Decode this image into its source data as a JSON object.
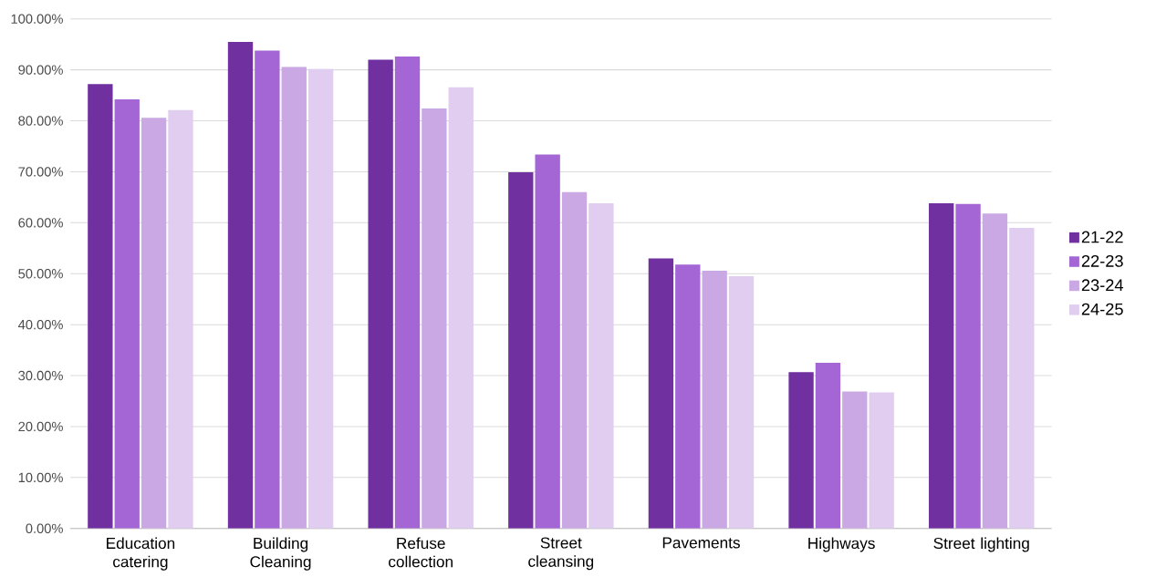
{
  "chart_data": {
    "type": "bar",
    "categories": [
      "Education catering",
      "Building Cleaning",
      "Refuse collection",
      "Street cleansing",
      "Pavements",
      "Highways",
      "Street lighting"
    ],
    "series": [
      {
        "name": "21-22",
        "color": "#7030a0",
        "values": [
          87.2,
          95.5,
          92.0,
          69.9,
          53.0,
          30.7,
          63.8
        ]
      },
      {
        "name": "22-23",
        "color": "#a366d4",
        "values": [
          84.2,
          93.8,
          92.6,
          73.4,
          51.8,
          32.5,
          63.7
        ]
      },
      {
        "name": "23-24",
        "color": "#c9a8e4",
        "values": [
          80.6,
          90.6,
          82.4,
          66.0,
          50.6,
          26.9,
          61.8
        ]
      },
      {
        "name": "24-25",
        "color": "#e0cdef",
        "values": [
          82.1,
          90.2,
          86.6,
          63.8,
          49.5,
          26.7,
          59.0
        ]
      }
    ],
    "ylim": [
      0,
      100
    ],
    "yticks": [
      {
        "value": 0,
        "label": "0.00%"
      },
      {
        "value": 10,
        "label": "10.00%"
      },
      {
        "value": 20,
        "label": "20.00%"
      },
      {
        "value": 30,
        "label": "30.00%"
      },
      {
        "value": 40,
        "label": "40.00%"
      },
      {
        "value": 50,
        "label": "50.00%"
      },
      {
        "value": 60,
        "label": "60.00%"
      },
      {
        "value": 70,
        "label": "70.00%"
      },
      {
        "value": 80,
        "label": "80.00%"
      },
      {
        "value": 90,
        "label": "90.00%"
      },
      {
        "value": 100,
        "label": "100.00%"
      }
    ],
    "grid": "y",
    "legend": "right"
  }
}
